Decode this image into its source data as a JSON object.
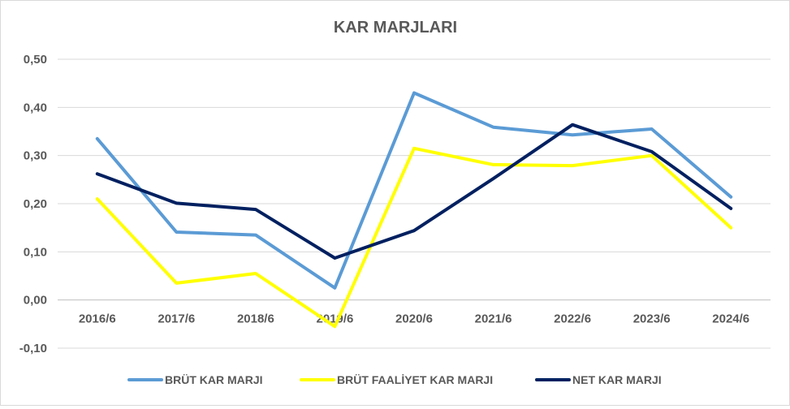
{
  "chart_data": {
    "type": "line",
    "title": "KAR MARJLARI",
    "xlabel": "",
    "ylabel": "",
    "categories": [
      "2016/6",
      "2017/6",
      "2018/6",
      "2019/6",
      "2020/6",
      "2021/6",
      "2022/6",
      "2023/6",
      "2024/6"
    ],
    "ylim": [
      -0.1,
      0.5
    ],
    "yticks": [
      -0.1,
      0.0,
      0.1,
      0.2,
      0.3,
      0.4,
      0.5
    ],
    "ytick_labels": [
      "-0,10",
      "0,00",
      "0,10",
      "0,20",
      "0,30",
      "0,40",
      "0,50"
    ],
    "grid": true,
    "legend_position": "bottom",
    "series": [
      {
        "name": "BRÜT KAR MARJI",
        "color": "#5b9bd5",
        "values": [
          0.335,
          0.141,
          0.135,
          0.025,
          0.43,
          0.359,
          0.343,
          0.355,
          0.214
        ]
      },
      {
        "name": "BRÜT FAALİYET KAR MARJI",
        "color": "#ffff00",
        "values": [
          0.21,
          0.035,
          0.055,
          -0.055,
          0.315,
          0.281,
          0.279,
          0.3,
          0.15
        ]
      },
      {
        "name": "NET KAR MARJI",
        "color": "#002060",
        "values": [
          0.262,
          0.201,
          0.188,
          0.087,
          0.144,
          0.252,
          0.364,
          0.308,
          0.19
        ]
      }
    ]
  }
}
